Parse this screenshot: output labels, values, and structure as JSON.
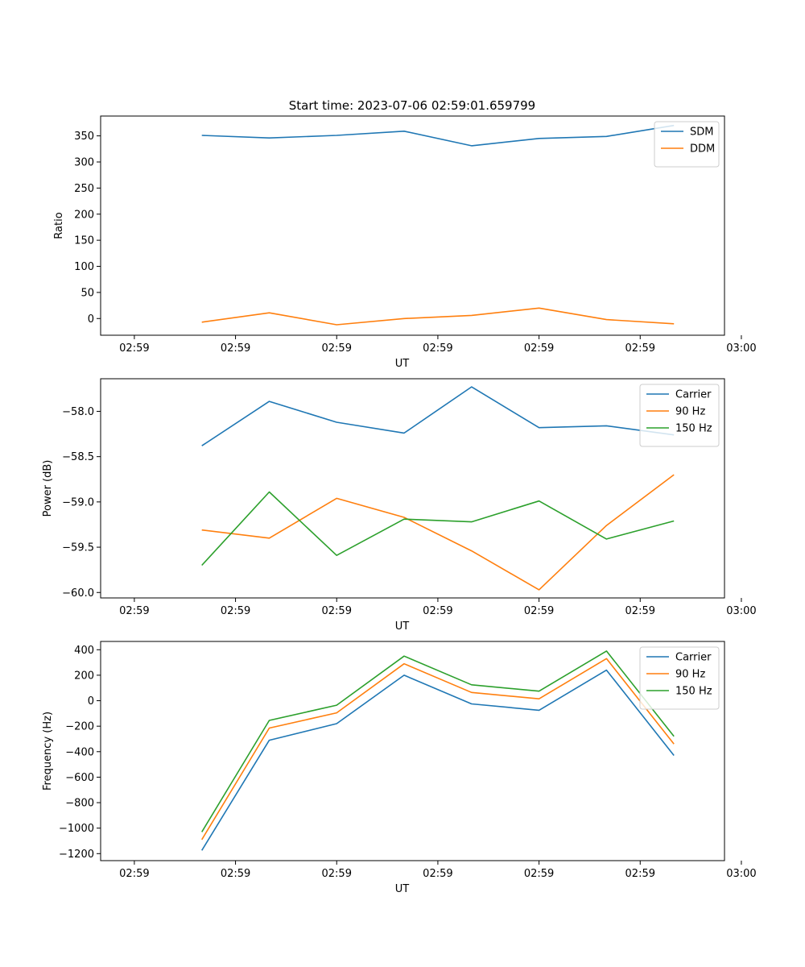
{
  "figure": {
    "title": "Start time: 2023-07-06 02:59:01.659799"
  },
  "colors": {
    "blue": "#1f77b4",
    "orange": "#ff7f0e",
    "green": "#2ca02c"
  },
  "chart_data": [
    {
      "type": "line",
      "title": "Start time: 2023-07-06 02:59:01.659799",
      "xlabel": "UT",
      "ylabel": "Ratio",
      "x": [
        1,
        2,
        3,
        4,
        5,
        6,
        7,
        8
      ],
      "xlim": [
        -0.5,
        8.75
      ],
      "xticks": [
        0,
        1.5,
        3,
        4.5,
        6,
        7.5,
        9
      ],
      "xticklabels": [
        "02:59",
        "02:59",
        "02:59",
        "02:59",
        "02:59",
        "02:59",
        "03:00"
      ],
      "ylim": [
        -32,
        388
      ],
      "yticks": [
        0,
        50,
        100,
        150,
        200,
        250,
        300,
        350
      ],
      "yticklabels": [
        "0",
        "50",
        "100",
        "150",
        "200",
        "250",
        "300",
        "350"
      ],
      "legend_position": "top-right",
      "series": [
        {
          "name": "SDM",
          "color": "#1f77b4",
          "values": [
            351,
            346,
            351,
            359,
            331,
            345,
            349,
            370
          ]
        },
        {
          "name": "DDM",
          "color": "#ff7f0e",
          "values": [
            -7,
            11,
            -12,
            0,
            6,
            20,
            -2,
            -10
          ]
        }
      ]
    },
    {
      "type": "line",
      "title": "",
      "xlabel": "UT",
      "ylabel": "Power (dB)",
      "x": [
        1,
        2,
        3,
        4,
        5,
        6,
        7,
        8
      ],
      "xlim": [
        -0.5,
        8.75
      ],
      "xticks": [
        0,
        1.5,
        3,
        4.5,
        6,
        7.5,
        9
      ],
      "xticklabels": [
        "02:59",
        "02:59",
        "02:59",
        "02:59",
        "02:59",
        "02:59",
        "03:00"
      ],
      "ylim": [
        -60.06,
        -57.64
      ],
      "yticks": [
        -60.0,
        -59.5,
        -59.0,
        -58.5,
        -58.0
      ],
      "yticklabels": [
        "−60.0",
        "−59.5",
        "−59.0",
        "−58.5",
        "−58.0"
      ],
      "legend_position": "top-right",
      "series": [
        {
          "name": "Carrier",
          "color": "#1f77b4",
          "values": [
            -58.38,
            -57.89,
            -58.12,
            -58.24,
            -57.73,
            -58.18,
            -58.16,
            -58.26
          ]
        },
        {
          "name": "90 Hz",
          "color": "#ff7f0e",
          "values": [
            -59.31,
            -59.4,
            -58.96,
            -59.17,
            -59.54,
            -59.97,
            -59.26,
            -58.7
          ]
        },
        {
          "name": "150 Hz",
          "color": "#2ca02c",
          "values": [
            -59.7,
            -58.89,
            -59.59,
            -59.19,
            -59.22,
            -58.99,
            -59.41,
            -59.21
          ]
        }
      ]
    },
    {
      "type": "line",
      "title": "",
      "xlabel": "UT",
      "ylabel": "Frequency (Hz)",
      "x": [
        1,
        2,
        3,
        4,
        5,
        6,
        7,
        8
      ],
      "xlim": [
        -0.5,
        8.75
      ],
      "xticks": [
        0,
        1.5,
        3,
        4.5,
        6,
        7.5,
        9
      ],
      "xticklabels": [
        "02:59",
        "02:59",
        "02:59",
        "02:59",
        "02:59",
        "02:59",
        "03:00"
      ],
      "ylim": [
        -1255,
        465
      ],
      "yticks": [
        -1200,
        -1000,
        -800,
        -600,
        -400,
        -200,
        0,
        200,
        400
      ],
      "yticklabels": [
        "−1200",
        "−1000",
        "−800",
        "−600",
        "−400",
        "−200",
        "0",
        "200",
        "400"
      ],
      "legend_position": "top-right",
      "series": [
        {
          "name": "Carrier",
          "color": "#1f77b4",
          "values": [
            -1175,
            -310,
            -180,
            200,
            -25,
            -75,
            240,
            -430
          ]
        },
        {
          "name": "90 Hz",
          "color": "#ff7f0e",
          "values": [
            -1090,
            -215,
            -95,
            290,
            65,
            15,
            330,
            -340
          ]
        },
        {
          "name": "150 Hz",
          "color": "#2ca02c",
          "values": [
            -1030,
            -155,
            -35,
            350,
            125,
            75,
            390,
            -280
          ]
        }
      ]
    }
  ]
}
